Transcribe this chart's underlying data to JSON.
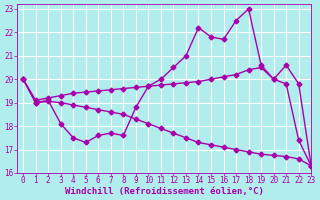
{
  "xlabel": "Windchill (Refroidissement éolien,°C)",
  "xlim": [
    -0.5,
    23
  ],
  "ylim": [
    16,
    23.2
  ],
  "yticks": [
    16,
    17,
    18,
    19,
    20,
    21,
    22,
    23
  ],
  "xticks": [
    0,
    1,
    2,
    3,
    4,
    5,
    6,
    7,
    8,
    9,
    10,
    11,
    12,
    13,
    14,
    15,
    16,
    17,
    18,
    19,
    20,
    21,
    22,
    23
  ],
  "bg_color": "#b2eded",
  "grid_color": "#ffffff",
  "line_color": "#aa00aa",
  "line1_y": [
    20.0,
    19.0,
    19.1,
    18.1,
    17.5,
    17.3,
    17.6,
    17.7,
    17.6,
    18.8,
    19.7,
    20.0,
    20.5,
    21.0,
    22.2,
    21.8,
    21.7,
    22.5,
    23.0,
    20.6,
    20.0,
    19.8,
    17.4,
    16.3
  ],
  "line2_y": [
    20.0,
    19.1,
    19.2,
    19.3,
    19.4,
    19.45,
    19.5,
    19.55,
    19.6,
    19.65,
    19.7,
    19.75,
    19.8,
    19.85,
    19.9,
    20.0,
    20.1,
    20.2,
    20.4,
    20.5,
    20.0,
    20.6,
    19.8,
    16.3
  ],
  "line3_y": [
    20.0,
    19.0,
    19.05,
    19.0,
    18.9,
    18.8,
    18.7,
    18.6,
    18.5,
    18.3,
    18.1,
    17.9,
    17.7,
    17.5,
    17.3,
    17.2,
    17.1,
    17.0,
    16.9,
    16.8,
    16.75,
    16.7,
    16.6,
    16.3
  ],
  "marker": "D",
  "markersize": 2.5,
  "linewidth": 1.0,
  "font_color": "#aa00aa",
  "tick_fontsize": 5.5,
  "label_fontsize": 6.5
}
